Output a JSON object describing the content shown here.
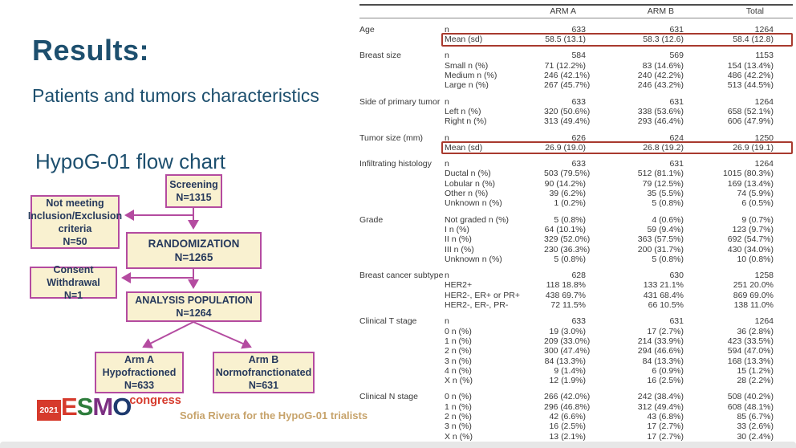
{
  "slide": {
    "title": "Results:",
    "subtitle": "Patients and tumors characteristics",
    "flow_title": "HypoG-01 flow chart",
    "credit": "Sofia Rivera for the HypoG-01 trialists"
  },
  "colors": {
    "title_blue": "#1d4f6e",
    "flow_accent_magenta": "#b44ba0",
    "flow_box_fill": "#f9f1d0",
    "flow_text_navy": "#26395c",
    "highlight_red": "#a83a2e",
    "credit_tan": "#c7a36b",
    "esmo_red": "#d63a2c"
  },
  "flowchart": {
    "screening": "Screening\nN=1315",
    "not_meeting": "Not meeting\nInclusion/Exclusion\ncriteria\nN=50",
    "randomization": "RANDOMIZATION\nN=1265",
    "consent": "Consent\nWithdrawal\nN=1",
    "analysis": "ANALYSIS POPULATION\nN=1264",
    "arm_a": "Arm A\nHypofractioned\nN=633",
    "arm_b": "Arm B\nNormofranctionated\nN=631"
  },
  "logo": {
    "year": "2021",
    "congress": "congress",
    "letters": [
      {
        "ch": "E",
        "color": "#d63a2c"
      },
      {
        "ch": "S",
        "color": "#2e7d3c"
      },
      {
        "ch": "M",
        "color": "#7c2f82"
      },
      {
        "ch": "O",
        "color": "#1e3a6e"
      }
    ]
  },
  "table": {
    "columns": [
      "ARM A",
      "ARM B",
      "Total"
    ],
    "sections": [
      {
        "label": "Age",
        "rows": [
          {
            "name": "n",
            "values": [
              "633",
              "631",
              "1264"
            ]
          },
          {
            "name": "Mean (sd)",
            "values": [
              "58.5 (13.1)",
              "58.3 (12.6)",
              "58.4 (12.8)"
            ],
            "highlight": true
          }
        ]
      },
      {
        "label": "Breast size",
        "rows": [
          {
            "name": "n",
            "values": [
              "584",
              "569",
              "1153"
            ]
          },
          {
            "name": "Small n (%)",
            "values": [
              "71 (12.2%)",
              "83 (14.6%)",
              "154 (13.4%)"
            ]
          },
          {
            "name": "Medium n (%)",
            "values": [
              "246 (42.1%)",
              "240 (42.2%)",
              "486 (42.2%)"
            ]
          },
          {
            "name": "Large n (%)",
            "values": [
              "267 (45.7%)",
              "246 (43.2%)",
              "513 (44.5%)"
            ]
          }
        ]
      },
      {
        "label": "Side of primary tumor",
        "rows": [
          {
            "name": "n",
            "values": [
              "633",
              "631",
              "1264"
            ]
          },
          {
            "name": "Left n (%)",
            "values": [
              "320 (50.6%)",
              "338 (53.6%)",
              "658 (52.1%)"
            ]
          },
          {
            "name": "Right n (%)",
            "values": [
              "313 (49.4%)",
              "293 (46.4%)",
              "606 (47.9%)"
            ]
          }
        ]
      },
      {
        "label": "Tumor size (mm)",
        "rows": [
          {
            "name": "n",
            "values": [
              "626",
              "624",
              "1250"
            ]
          },
          {
            "name": "Mean (sd)",
            "values": [
              "26.9 (19.0)",
              "26.8 (19.2)",
              "26.9 (19.1)"
            ],
            "highlight": true
          }
        ]
      },
      {
        "label": "Infiltrating histology",
        "rows": [
          {
            "name": "n",
            "values": [
              "633",
              "631",
              "1264"
            ]
          },
          {
            "name": "Ductal n (%)",
            "values": [
              "503 (79.5%)",
              "512 (81.1%)",
              "1015 (80.3%)"
            ]
          },
          {
            "name": "Lobular n (%)",
            "values": [
              "90 (14.2%)",
              "79 (12.5%)",
              "169 (13.4%)"
            ]
          },
          {
            "name": "Other n (%)",
            "values": [
              "39 (6.2%)",
              "35 (5.5%)",
              "74 (5.9%)"
            ]
          },
          {
            "name": "Unknown n (%)",
            "values": [
              "1 (0.2%)",
              "5 (0.8%)",
              "6 (0.5%)"
            ]
          }
        ]
      },
      {
        "label": "Grade",
        "rows": [
          {
            "name": "Not graded n (%)",
            "values": [
              "5 (0.8%)",
              "4 (0.6%)",
              "9 (0.7%)"
            ]
          },
          {
            "name": "I n (%)",
            "values": [
              "64 (10.1%)",
              "59 (9.4%)",
              "123 (9.7%)"
            ]
          },
          {
            "name": "II n (%)",
            "values": [
              "329 (52.0%)",
              "363 (57.5%)",
              "692 (54.7%)"
            ]
          },
          {
            "name": "III n (%)",
            "values": [
              "230 (36.3%)",
              "200 (31.7%)",
              "430 (34.0%)"
            ]
          },
          {
            "name": "Unknown n (%)",
            "values": [
              "5 (0.8%)",
              "5 (0.8%)",
              "10 (0.8%)"
            ]
          }
        ]
      },
      {
        "label": "Breast cancer subtype",
        "rows": [
          {
            "name": "n",
            "values": [
              "628",
              "630",
              "1258"
            ]
          },
          {
            "name": "HER2+",
            "values": [
              "118 18.8%",
              "133 21.1%",
              "251 20.0%"
            ]
          },
          {
            "name": "HER2-, ER+ or PR+",
            "values": [
              "438 69.7%",
              "431 68.4%",
              "869 69.0%"
            ]
          },
          {
            "name": "HER2-, ER-, PR-",
            "values": [
              "72 11.5%",
              "66 10.5%",
              "138 11.0%"
            ]
          }
        ]
      },
      {
        "label": "Clinical T stage",
        "rows": [
          {
            "name": "n",
            "values": [
              "633",
              "631",
              "1264"
            ]
          },
          {
            "name": "0 n (%)",
            "values": [
              "19 (3.0%)",
              "17 (2.7%)",
              "36 (2.8%)"
            ]
          },
          {
            "name": "1 n (%)",
            "values": [
              "209 (33.0%)",
              "214 (33.9%)",
              "423 (33.5%)"
            ]
          },
          {
            "name": "2 n (%)",
            "values": [
              "300 (47.4%)",
              "294 (46.6%)",
              "594 (47.0%)"
            ]
          },
          {
            "name": "3 n (%)",
            "values": [
              "84 (13.3%)",
              "84 (13.3%)",
              "168 (13.3%)"
            ]
          },
          {
            "name": "4 n (%)",
            "values": [
              "9 (1.4%)",
              "6 (0.9%)",
              "15 (1.2%)"
            ]
          },
          {
            "name": "X n (%)",
            "values": [
              "12 (1.9%)",
              "16 (2.5%)",
              "28 (2.2%)"
            ]
          }
        ]
      },
      {
        "label": "Clinical N stage",
        "rows": [
          {
            "name": "0 n (%)",
            "values": [
              "266 (42.0%)",
              "242 (38.4%)",
              "508 (40.2%)"
            ]
          },
          {
            "name": "1 n (%)",
            "values": [
              "296 (46.8%)",
              "312 (49.4%)",
              "608 (48.1%)"
            ]
          },
          {
            "name": "2 n (%)",
            "values": [
              "42 (6.6%)",
              "43 (6.8%)",
              "85 (6.7%)"
            ]
          },
          {
            "name": "3 n (%)",
            "values": [
              "16 (2.5%)",
              "17 (2.7%)",
              "33 (2.6%)"
            ]
          },
          {
            "name": "X n (%)",
            "values": [
              "13 (2.1%)",
              "17 (2.7%)",
              "30 (2.4%)"
            ]
          }
        ]
      }
    ]
  }
}
